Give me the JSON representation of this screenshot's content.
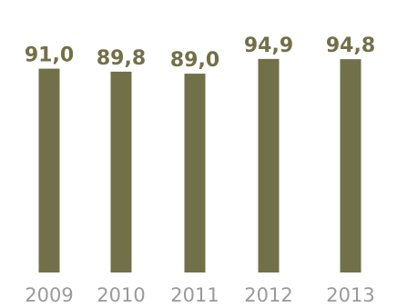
{
  "chart_data": {
    "type": "bar",
    "categories": [
      "2009",
      "2010",
      "2011",
      "2012",
      "2013"
    ],
    "values": [
      91.0,
      89.8,
      89.0,
      94.9,
      94.8
    ],
    "value_labels": [
      "91,0",
      "89,8",
      "89,0",
      "94,9",
      "94,8"
    ],
    "title": "",
    "xlabel": "",
    "ylabel": "",
    "ylim": [
      0,
      100
    ],
    "bar_color": "#727048",
    "value_label_color": "#727048",
    "tick_label_color": "#9a9a9a",
    "grid": false,
    "legend": "none"
  }
}
